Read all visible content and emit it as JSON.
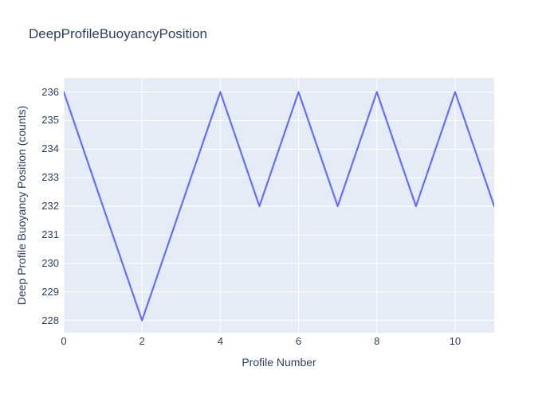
{
  "header": {
    "title": "DeepProfileBuoyancyPosition"
  },
  "colors": {
    "line": "#636efa",
    "plot_background": "#e5ecf6",
    "gridline": "#ffffff",
    "text": "#2a3f5f",
    "paper_background": "#ffffff"
  },
  "chart_data": {
    "type": "line",
    "title": "DeepProfileBuoyancyPosition",
    "xlabel": "Profile Number",
    "ylabel": "Deep Profile Buoyancy Position (counts)",
    "x": [
      0,
      1,
      2,
      3,
      4,
      5,
      6,
      7,
      8,
      9,
      10,
      11
    ],
    "y": [
      236,
      232,
      228,
      232,
      236,
      232,
      236,
      232,
      236,
      232,
      236,
      232
    ],
    "xlim": [
      0,
      11
    ],
    "ylim": [
      227.57,
      236.49
    ],
    "x_ticks": [
      0,
      2,
      4,
      6,
      8,
      10
    ],
    "y_ticks": [
      228,
      229,
      230,
      231,
      232,
      233,
      234,
      235,
      236
    ],
    "grid": true,
    "legend": "none",
    "line_width": 2.2
  }
}
